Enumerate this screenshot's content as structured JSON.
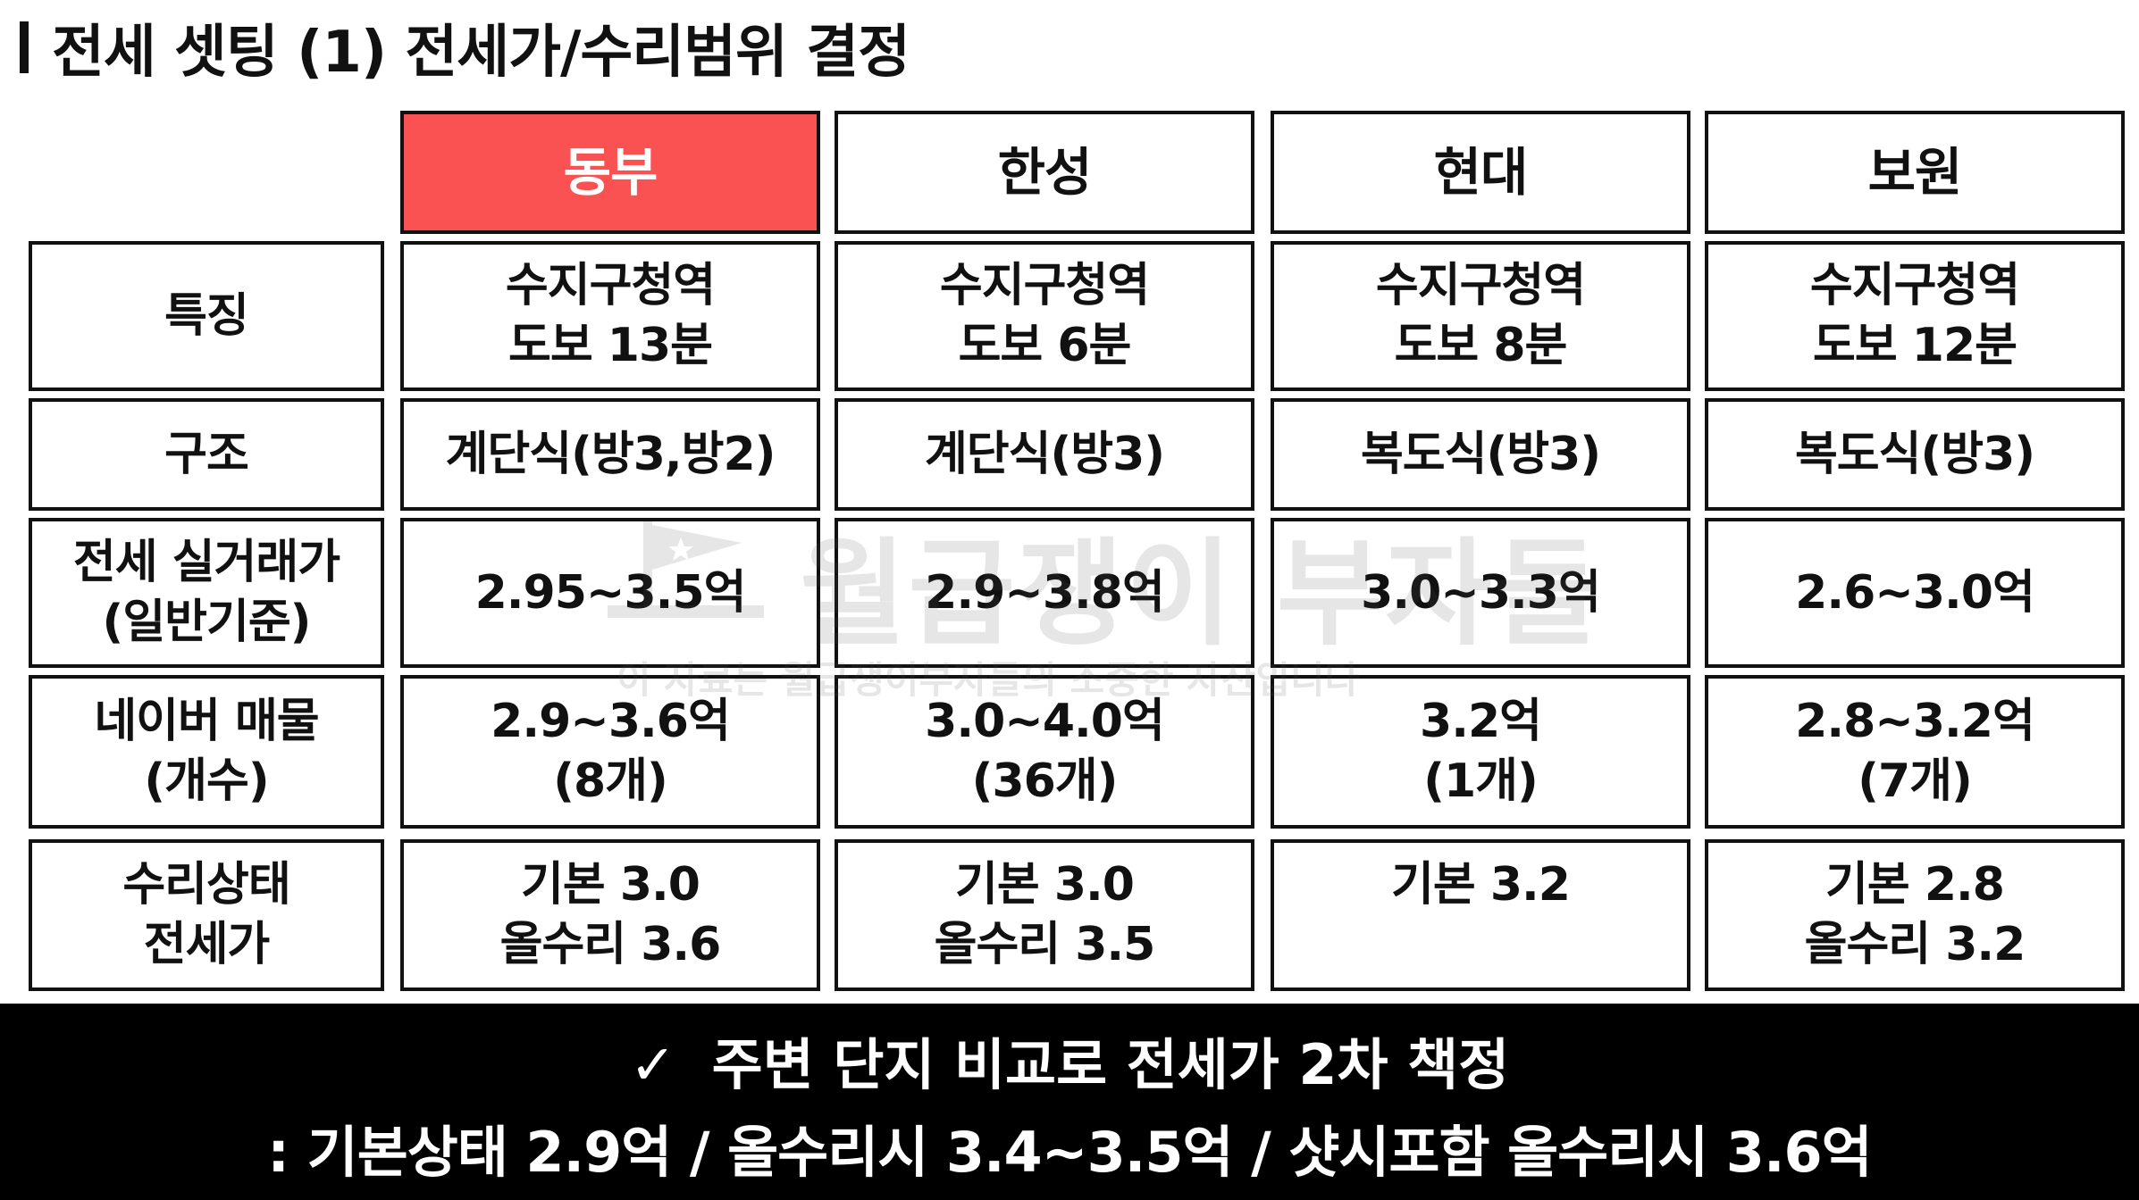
{
  "title": "전세 셋팅 (1) 전세가/수리범위 결정",
  "columns": [
    "동부",
    "한성",
    "현대",
    "보원"
  ],
  "row_labels": [
    [
      "특징"
    ],
    [
      "구조"
    ],
    [
      "전세 실거래가",
      "(일반기준)"
    ],
    [
      "네이버 매물",
      "(개수)"
    ],
    [
      "수리상태",
      "전세가"
    ]
  ],
  "rows": [
    [
      [
        "수지구청역",
        "도보 13분"
      ],
      [
        "수지구청역",
        "도보 6분"
      ],
      [
        "수지구청역",
        "도보 8분"
      ],
      [
        "수지구청역",
        "도보 12분"
      ]
    ],
    [
      [
        "계단식(방3,방2)"
      ],
      [
        "계단식(방3)"
      ],
      [
        "복도식(방3)"
      ],
      [
        "복도식(방3)"
      ]
    ],
    [
      [
        "2.95~3.5억"
      ],
      [
        "2.9~3.8억"
      ],
      [
        "3.0~3.3억"
      ],
      [
        "2.6~3.0억"
      ]
    ],
    [
      [
        "2.9~3.6억",
        "(8개)"
      ],
      [
        "3.0~4.0억",
        "(36개)"
      ],
      [
        "3.2억",
        "(1개)"
      ],
      [
        "2.8~3.2억",
        "(7개)"
      ]
    ],
    [
      [
        "기본 3.0",
        "올수리 3.6"
      ],
      [
        "기본 3.0",
        "올수리 3.5"
      ],
      [
        "기본 3.2"
      ],
      [
        "기본 2.8",
        "올수리 3.2"
      ]
    ]
  ],
  "watermark": {
    "main": "월급쟁이 부자들",
    "sub": "이 자료는 월급쟁이부자들의 소중한 자산입니다"
  },
  "footer": {
    "check_icon": "✓",
    "line1": "주변 단지 비교로 전세가 2차 책정",
    "line2": ": 기본상태 2.9억 / 올수리시 3.4~3.5억 / 샷시포함 올수리시 3.6억"
  },
  "colors": {
    "highlight": "#fa5252",
    "border": "#111111",
    "footer_bg": "#000000"
  }
}
